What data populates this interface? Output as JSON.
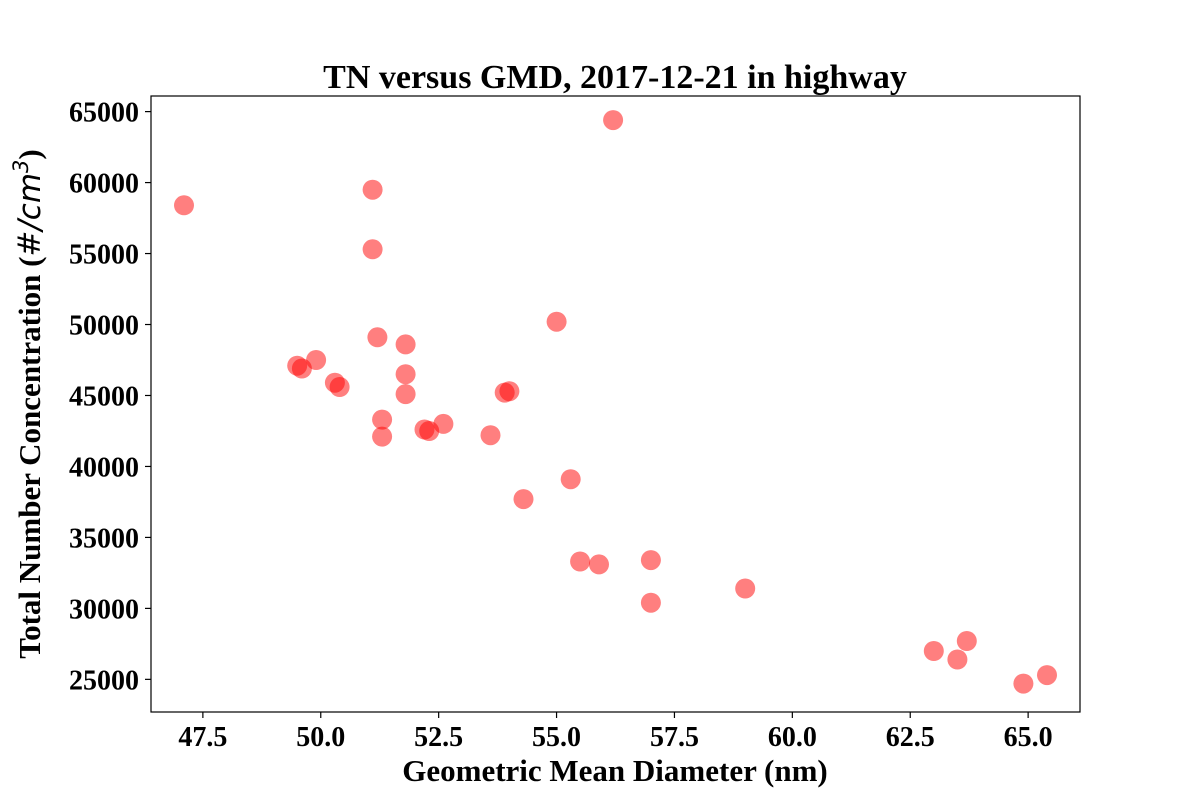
{
  "chart_data": {
    "type": "scatter",
    "title": "TN versus GMD, 2017-12-21 in highway",
    "xlabel": "Geometric Mean Diameter (nm)",
    "ylabel": "Total Number Concentration (#/cm³)",
    "ylabel_main": "Total Number Concentration (",
    "ylabel_unit": "#/cm",
    "ylabel_sup": "3",
    "ylabel_close": ")",
    "xlim": [
      46.4,
      66.1
    ],
    "ylim": [
      22700,
      66100
    ],
    "grid": false,
    "point_color": "#ff0000",
    "x_ticks": [
      47.5,
      50.0,
      52.5,
      55.0,
      57.5,
      60.0,
      62.5,
      65.0
    ],
    "x_tick_labels": [
      "47.5",
      "50.0",
      "52.5",
      "55.0",
      "57.5",
      "60.0",
      "62.5",
      "65.0"
    ],
    "y_ticks": [
      25000,
      30000,
      35000,
      40000,
      45000,
      50000,
      55000,
      60000,
      65000
    ],
    "y_tick_labels": [
      "25000",
      "30000",
      "35000",
      "40000",
      "45000",
      "50000",
      "55000",
      "60000",
      "65000"
    ],
    "points": [
      {
        "x": 47.1,
        "y": 58400
      },
      {
        "x": 49.5,
        "y": 47100
      },
      {
        "x": 49.6,
        "y": 46900
      },
      {
        "x": 49.9,
        "y": 47500
      },
      {
        "x": 50.3,
        "y": 45900
      },
      {
        "x": 50.4,
        "y": 45600
      },
      {
        "x": 51.1,
        "y": 59500
      },
      {
        "x": 51.1,
        "y": 55300
      },
      {
        "x": 51.2,
        "y": 49100
      },
      {
        "x": 51.3,
        "y": 43300
      },
      {
        "x": 51.3,
        "y": 42100
      },
      {
        "x": 51.8,
        "y": 48600
      },
      {
        "x": 51.8,
        "y": 46500
      },
      {
        "x": 51.8,
        "y": 45100
      },
      {
        "x": 52.2,
        "y": 42600
      },
      {
        "x": 52.3,
        "y": 42500
      },
      {
        "x": 52.6,
        "y": 43000
      },
      {
        "x": 53.6,
        "y": 42200
      },
      {
        "x": 53.9,
        "y": 45200
      },
      {
        "x": 54.0,
        "y": 45300
      },
      {
        "x": 54.3,
        "y": 37700
      },
      {
        "x": 55.0,
        "y": 50200
      },
      {
        "x": 55.3,
        "y": 39100
      },
      {
        "x": 55.5,
        "y": 33300
      },
      {
        "x": 55.9,
        "y": 33100
      },
      {
        "x": 56.2,
        "y": 64400
      },
      {
        "x": 57.0,
        "y": 33400
      },
      {
        "x": 57.0,
        "y": 30400
      },
      {
        "x": 59.0,
        "y": 31400
      },
      {
        "x": 63.0,
        "y": 27000
      },
      {
        "x": 63.5,
        "y": 26400
      },
      {
        "x": 63.7,
        "y": 27700
      },
      {
        "x": 64.9,
        "y": 24700
      },
      {
        "x": 65.4,
        "y": 25300
      }
    ]
  }
}
